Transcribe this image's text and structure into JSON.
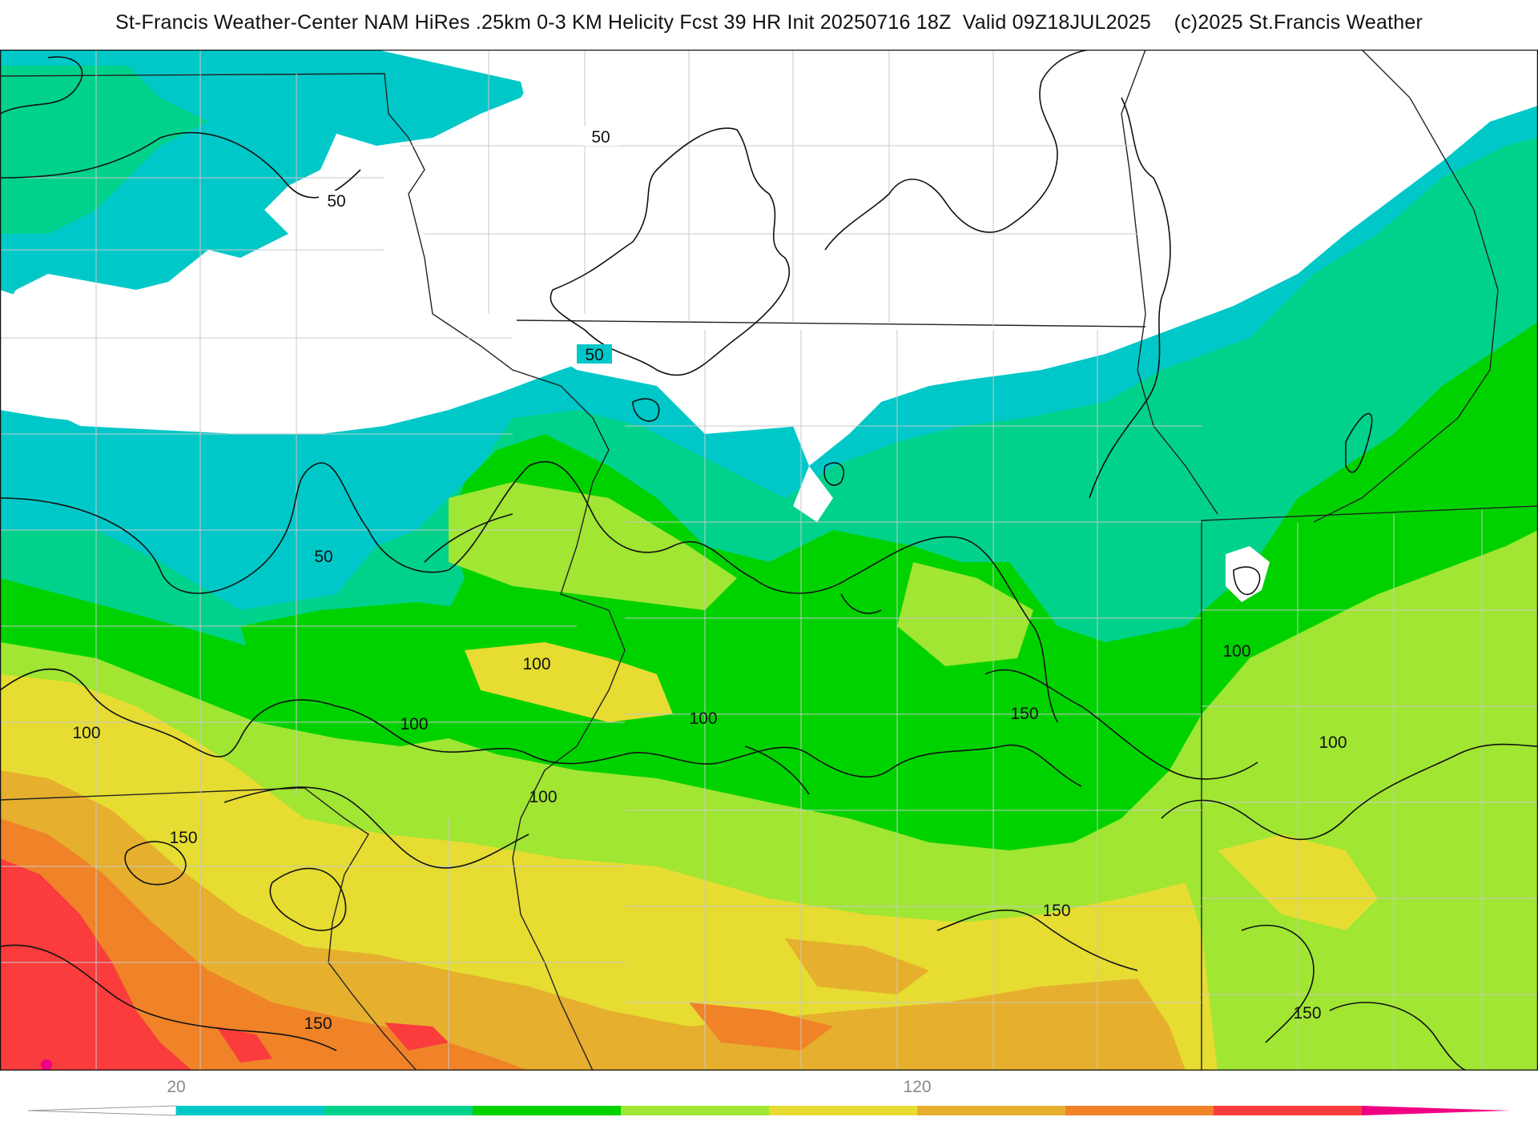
{
  "header": {
    "title": "St-Francis Weather-Center NAM HiRes .25km 0-3 KM Helicity Fcst 39 HR Init 20250716 18Z  Valid 09Z18JUL2025    (c)2025 St.Francis Weather"
  },
  "contour_labels": [
    "50",
    "50",
    "50",
    "50",
    "100",
    "100",
    "100",
    "100",
    "100",
    "100",
    "100",
    "150",
    "150",
    "150",
    "150",
    "150"
  ],
  "colorbar": {
    "tick_labels": [
      "20",
      "120"
    ],
    "colors": [
      "#00c8c8",
      "#00d28c",
      "#00d200",
      "#a0e632",
      "#e6dc32",
      "#e6af2d",
      "#f08228",
      "#fa3c3c",
      "#f00082"
    ]
  },
  "palette": {
    "none": "#ffffff",
    "c1": "#00c8c8",
    "c2": "#00d28c",
    "c3": "#00d200",
    "c4": "#a0e632",
    "c5": "#e6dc32",
    "c6": "#e6af2d",
    "c7": "#f08228",
    "c8": "#fa3c3c",
    "c9": "#f00082"
  }
}
